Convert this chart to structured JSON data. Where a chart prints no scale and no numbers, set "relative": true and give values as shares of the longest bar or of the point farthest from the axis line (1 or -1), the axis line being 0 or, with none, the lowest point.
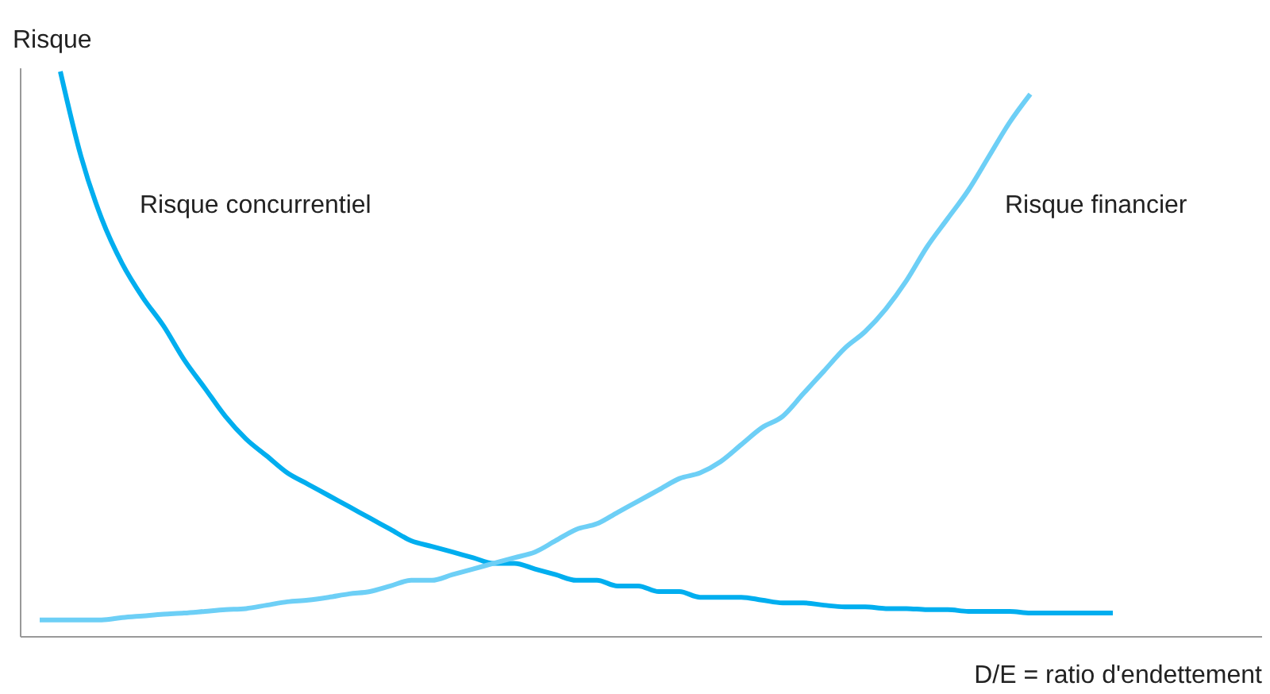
{
  "chart_data": {
    "type": "line",
    "relative": true,
    "xlabel": "D/E = ratio d'endettement",
    "ylabel": "Risque",
    "marker": "none",
    "line_style": "solid",
    "categories": [
      null,
      null,
      null,
      null,
      null,
      null,
      null,
      null,
      null,
      null,
      null,
      null,
      null,
      null,
      null,
      null,
      null,
      null,
      null,
      null,
      null,
      null,
      null,
      null,
      null,
      null,
      null,
      null,
      null,
      null,
      null,
      null,
      null,
      null,
      null,
      null,
      null,
      null,
      null,
      null,
      null,
      null,
      null,
      null,
      null,
      null,
      null,
      null,
      null,
      null,
      null,
      null,
      null
    ],
    "series": [
      {
        "name": "Risque concurrentiel",
        "color": "#00aeef",
        "values": [
          null,
          1,
          0.85,
          0.74,
          0.66,
          0.6,
          0.55,
          0.49,
          0.44,
          0.39,
          0.35,
          0.32,
          0.29,
          0.27,
          0.25,
          0.23,
          0.21,
          0.19,
          0.17,
          0.16,
          0.15,
          0.14,
          0.13,
          0.13,
          0.12,
          0.11,
          0.1,
          0.1,
          0.09,
          0.09,
          0.08,
          0.08,
          0.07,
          0.07,
          0.07,
          0.065,
          0.06,
          0.06,
          0.056,
          0.053,
          0.053,
          0.05,
          0.05,
          0.048,
          0.048,
          0.045,
          0.045,
          0.045,
          0.042,
          0.042,
          0.042,
          0.042,
          0.042
        ]
      },
      {
        "name": "Risque financier",
        "color": "#6dcff6",
        "values": [
          0.03,
          0.03,
          0.03,
          0.03,
          0.034,
          0.037,
          0.04,
          0.042,
          0.045,
          0.048,
          0.05,
          0.056,
          0.062,
          0.065,
          0.07,
          0.076,
          0.08,
          0.09,
          0.1,
          0.1,
          0.11,
          0.12,
          0.13,
          0.14,
          0.15,
          0.17,
          0.19,
          0.2,
          0.22,
          0.24,
          0.26,
          0.28,
          0.29,
          0.31,
          0.34,
          0.37,
          0.39,
          0.43,
          0.47,
          0.51,
          0.54,
          0.58,
          0.63,
          0.69,
          0.74,
          0.79,
          0.85,
          0.91,
          0.96,
          null,
          null,
          null,
          null
        ]
      }
    ]
  }
}
